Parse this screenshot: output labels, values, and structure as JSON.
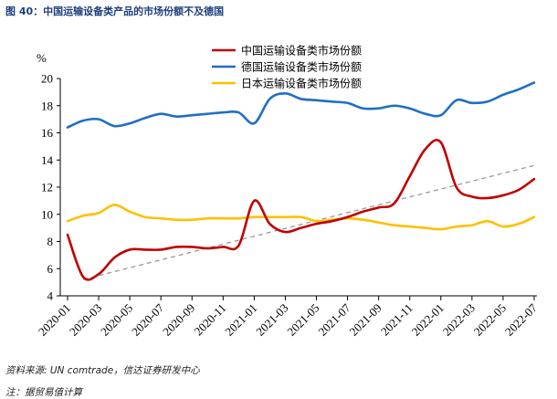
{
  "figure_title": "图 40：中国运输设备类产品的市场份额不及德国",
  "source_note": "资料来源: UN comtrade，信达证券研发中心",
  "footnote": "注：据贸易值计算",
  "chart_data": {
    "type": "line",
    "ylabel": "%",
    "ylim": [
      4,
      20
    ],
    "yticks": [
      4,
      6,
      8,
      10,
      12,
      14,
      16,
      18,
      20
    ],
    "xlim": [
      0,
      31
    ],
    "xtick_labels": [
      "2020-01",
      "2020-03",
      "2020-05",
      "2020-07",
      "2020-09",
      "2020-11",
      "2021-01",
      "2021-03",
      "2021-05",
      "2021-07",
      "2021-09",
      "2021-11",
      "2022-01",
      "2022-03",
      "2022-05",
      "2022-07"
    ],
    "xtick_positions": [
      0,
      2,
      4,
      6,
      8,
      10,
      12,
      14,
      16,
      18,
      20,
      22,
      24,
      26,
      28,
      30
    ],
    "legend_position": "top-center",
    "series": [
      {
        "name": "中国运输设备类市场份额",
        "color": "#c00000",
        "values": [
          8.5,
          5.4,
          5.6,
          6.8,
          7.4,
          7.4,
          7.4,
          7.6,
          7.6,
          7.5,
          7.6,
          7.7,
          11.0,
          9.3,
          8.7,
          9.0,
          9.3,
          9.5,
          9.8,
          10.2,
          10.5,
          10.8,
          12.8,
          14.8,
          15.3,
          12.0,
          11.3,
          11.2,
          11.4,
          11.8,
          12.6
        ]
      },
      {
        "name": "德国运输设备类市场份额",
        "color": "#1f6fc4",
        "values": [
          16.4,
          16.9,
          17.0,
          16.5,
          16.7,
          17.1,
          17.4,
          17.2,
          17.3,
          17.4,
          17.5,
          17.5,
          16.7,
          18.5,
          18.9,
          18.5,
          18.4,
          18.3,
          18.2,
          17.8,
          17.8,
          18.0,
          17.8,
          17.4,
          17.3,
          18.4,
          18.2,
          18.3,
          18.8,
          19.2,
          19.7
        ]
      },
      {
        "name": "日本运输设备类市场份额",
        "color": "#ffc000",
        "values": [
          9.5,
          9.9,
          10.1,
          10.7,
          10.2,
          9.8,
          9.7,
          9.6,
          9.6,
          9.7,
          9.7,
          9.7,
          9.8,
          9.8,
          9.8,
          9.8,
          9.5,
          9.6,
          9.7,
          9.6,
          9.4,
          9.2,
          9.1,
          9.0,
          8.9,
          9.1,
          9.2,
          9.5,
          9.1,
          9.3,
          9.8
        ]
      }
    ],
    "trendline": {
      "color": "#999999",
      "dashed": true,
      "from": [
        1,
        5.2
      ],
      "to": [
        30,
        13.6
      ]
    }
  }
}
